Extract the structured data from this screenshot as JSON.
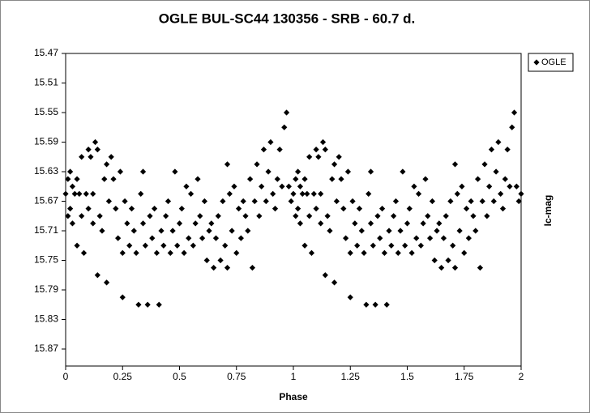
{
  "chart_data": {
    "type": "scatter",
    "title": "OGLE BUL-SC44 130356 - SRB - 60.7 d.",
    "x_label": "Phase",
    "y_label": "Ic-mag",
    "xlim": [
      0,
      2
    ],
    "xticks": [
      0,
      0.25,
      0.5,
      0.75,
      1,
      1.25,
      1.5,
      1.75,
      2
    ],
    "ylim": [
      15.47,
      15.893
    ],
    "y_inverted": true,
    "yticks": [
      15.47,
      15.51,
      15.55,
      15.59,
      15.63,
      15.67,
      15.71,
      15.75,
      15.79,
      15.83,
      15.87
    ],
    "legend": "top-right",
    "series": [
      {
        "name": "OGLE",
        "color": "#000000",
        "x": [
          0,
          0.01,
          0.01,
          0.02,
          0.02,
          0.03,
          0.03,
          0.04,
          0.05,
          0.05,
          0.06,
          0.07,
          0.07,
          0.08,
          0.09,
          0.1,
          0.1,
          0.11,
          0.12,
          0.12,
          0.13,
          0.14,
          0.14,
          0.15,
          0.16,
          0.17,
          0.18,
          0.18,
          0.19,
          0.2,
          0.21,
          0.22,
          0.23,
          0.24,
          0.25,
          0.25,
          0.26,
          0.27,
          0.28,
          0.29,
          0.3,
          0.31,
          0.32,
          0.33,
          0.34,
          0.34,
          0.35,
          0.36,
          0.37,
          0.38,
          0.39,
          0.4,
          0.41,
          0.42,
          0.43,
          0.44,
          0.45,
          0.46,
          0.47,
          0.48,
          0.49,
          0.5,
          0.51,
          0.52,
          0.53,
          0.54,
          0.55,
          0.56,
          0.57,
          0.58,
          0.59,
          0.6,
          0.61,
          0.62,
          0.63,
          0.64,
          0.65,
          0.66,
          0.67,
          0.68,
          0.69,
          0.7,
          0.71,
          0.71,
          0.72,
          0.73,
          0.74,
          0.75,
          0.76,
          0.77,
          0.78,
          0.79,
          0.8,
          0.81,
          0.82,
          0.83,
          0.84,
          0.85,
          0.86,
          0.87,
          0.88,
          0.89,
          0.9,
          0.91,
          0.92,
          0.93,
          0.94,
          0.95,
          0.96,
          0.97,
          0.98,
          0.99,
          1,
          1.01,
          1.01,
          1.02,
          1.02,
          1.03,
          1.03,
          1.04,
          1.05,
          1.05,
          1.06,
          1.07,
          1.07,
          1.08,
          1.09,
          1.1,
          1.1,
          1.11,
          1.12,
          1.12,
          1.13,
          1.14,
          1.14,
          1.15,
          1.16,
          1.17,
          1.18,
          1.18,
          1.19,
          1.2,
          1.21,
          1.22,
          1.23,
          1.24,
          1.25,
          1.25,
          1.26,
          1.27,
          1.28,
          1.29,
          1.3,
          1.31,
          1.32,
          1.33,
          1.34,
          1.34,
          1.35,
          1.36,
          1.37,
          1.38,
          1.39,
          1.4,
          1.41,
          1.42,
          1.43,
          1.44,
          1.45,
          1.46,
          1.47,
          1.48,
          1.49,
          1.5,
          1.51,
          1.52,
          1.53,
          1.54,
          1.55,
          1.56,
          1.57,
          1.58,
          1.59,
          1.6,
          1.61,
          1.62,
          1.63,
          1.64,
          1.65,
          1.66,
          1.67,
          1.68,
          1.69,
          1.7,
          1.71,
          1.71,
          1.72,
          1.73,
          1.74,
          1.75,
          1.76,
          1.77,
          1.78,
          1.79,
          1.8,
          1.81,
          1.82,
          1.83,
          1.84,
          1.85,
          1.86,
          1.87,
          1.88,
          1.89,
          1.9,
          1.91,
          1.92,
          1.93,
          1.94,
          1.95,
          1.96,
          1.97,
          1.98,
          1.99,
          2
        ],
        "values": [
          15.66,
          15.64,
          15.69,
          15.63,
          15.68,
          15.65,
          15.7,
          15.66,
          15.64,
          15.73,
          15.66,
          15.61,
          15.69,
          15.74,
          15.66,
          15.6,
          15.68,
          15.61,
          15.66,
          15.7,
          15.59,
          15.6,
          15.77,
          15.69,
          15.71,
          15.64,
          15.62,
          15.78,
          15.67,
          15.61,
          15.64,
          15.68,
          15.72,
          15.63,
          15.74,
          15.8,
          15.67,
          15.7,
          15.73,
          15.68,
          15.71,
          15.74,
          15.81,
          15.66,
          15.63,
          15.7,
          15.73,
          15.81,
          15.69,
          15.72,
          15.68,
          15.74,
          15.81,
          15.71,
          15.73,
          15.69,
          15.67,
          15.74,
          15.71,
          15.63,
          15.73,
          15.7,
          15.68,
          15.74,
          15.65,
          15.72,
          15.66,
          15.73,
          15.7,
          15.64,
          15.69,
          15.72,
          15.67,
          15.75,
          15.71,
          15.7,
          15.76,
          15.72,
          15.69,
          15.75,
          15.67,
          15.73,
          15.62,
          15.76,
          15.66,
          15.71,
          15.65,
          15.74,
          15.68,
          15.72,
          15.67,
          15.69,
          15.71,
          15.64,
          15.76,
          15.67,
          15.62,
          15.69,
          15.65,
          15.6,
          15.67,
          15.63,
          15.59,
          15.66,
          15.68,
          15.64,
          15.6,
          15.65,
          15.57,
          15.55,
          15.65,
          15.67,
          15.66,
          15.64,
          15.69,
          15.63,
          15.68,
          15.65,
          15.7,
          15.66,
          15.64,
          15.73,
          15.66,
          15.61,
          15.69,
          15.74,
          15.66,
          15.6,
          15.68,
          15.61,
          15.66,
          15.7,
          15.59,
          15.6,
          15.77,
          15.69,
          15.71,
          15.64,
          15.62,
          15.78,
          15.67,
          15.61,
          15.64,
          15.68,
          15.72,
          15.63,
          15.74,
          15.8,
          15.67,
          15.7,
          15.73,
          15.68,
          15.71,
          15.74,
          15.81,
          15.66,
          15.63,
          15.7,
          15.73,
          15.81,
          15.69,
          15.72,
          15.68,
          15.74,
          15.81,
          15.71,
          15.73,
          15.69,
          15.67,
          15.74,
          15.71,
          15.63,
          15.73,
          15.7,
          15.68,
          15.74,
          15.65,
          15.72,
          15.66,
          15.73,
          15.7,
          15.64,
          15.69,
          15.72,
          15.67,
          15.75,
          15.71,
          15.7,
          15.76,
          15.72,
          15.69,
          15.75,
          15.67,
          15.73,
          15.62,
          15.76,
          15.66,
          15.71,
          15.65,
          15.74,
          15.68,
          15.72,
          15.67,
          15.69,
          15.71,
          15.64,
          15.76,
          15.67,
          15.62,
          15.69,
          15.65,
          15.6,
          15.67,
          15.63,
          15.59,
          15.66,
          15.68,
          15.64,
          15.6,
          15.65,
          15.57,
          15.55,
          15.65,
          15.67,
          15.66
        ]
      }
    ]
  }
}
